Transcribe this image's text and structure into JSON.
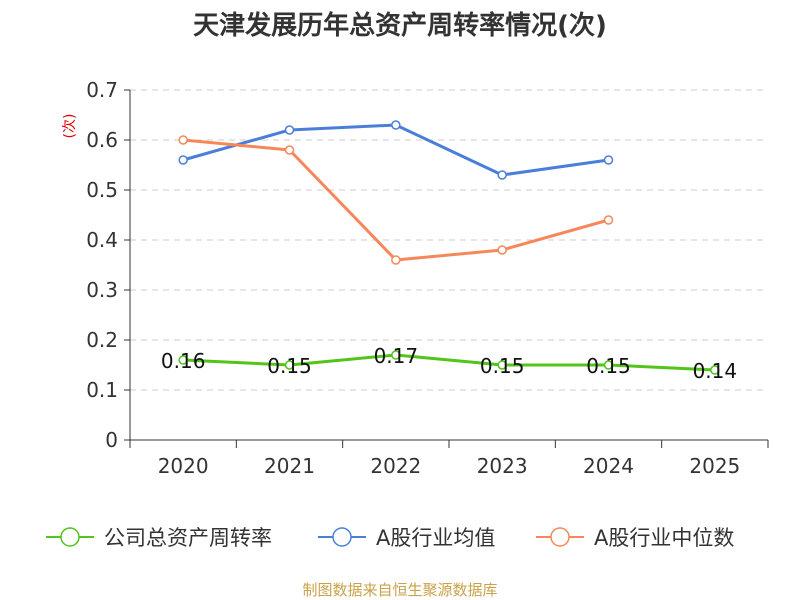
{
  "chart_data": {
    "type": "line",
    "title": "天津发展历年总资产周转率情况(次)",
    "ylabel": "(次)",
    "xlabel": "",
    "categories": [
      "2020",
      "2021",
      "2022",
      "2023",
      "2024",
      "2025"
    ],
    "ylim": [
      0,
      0.7
    ],
    "yticks": [
      "0",
      "0.1",
      "0.2",
      "0.3",
      "0.4",
      "0.5",
      "0.6",
      "0.7"
    ],
    "grid": true,
    "legend_position": "bottom",
    "series": [
      {
        "name": "公司总资产周转率",
        "color": "#52c41a",
        "values": [
          0.16,
          0.15,
          0.17,
          0.15,
          0.15,
          0.14
        ],
        "labels": [
          "0.16",
          "0.15",
          "0.17",
          "0.15",
          "0.15",
          "0.14"
        ]
      },
      {
        "name": "A股行业均值",
        "color": "#4a7fd9",
        "values": [
          0.56,
          0.62,
          0.63,
          0.53,
          0.56,
          null
        ]
      },
      {
        "name": "A股行业中位数",
        "color": "#f7875a",
        "values": [
          0.6,
          0.58,
          0.36,
          0.38,
          0.44,
          null
        ]
      }
    ],
    "source": "制图数据来自恒生聚源数据库"
  }
}
